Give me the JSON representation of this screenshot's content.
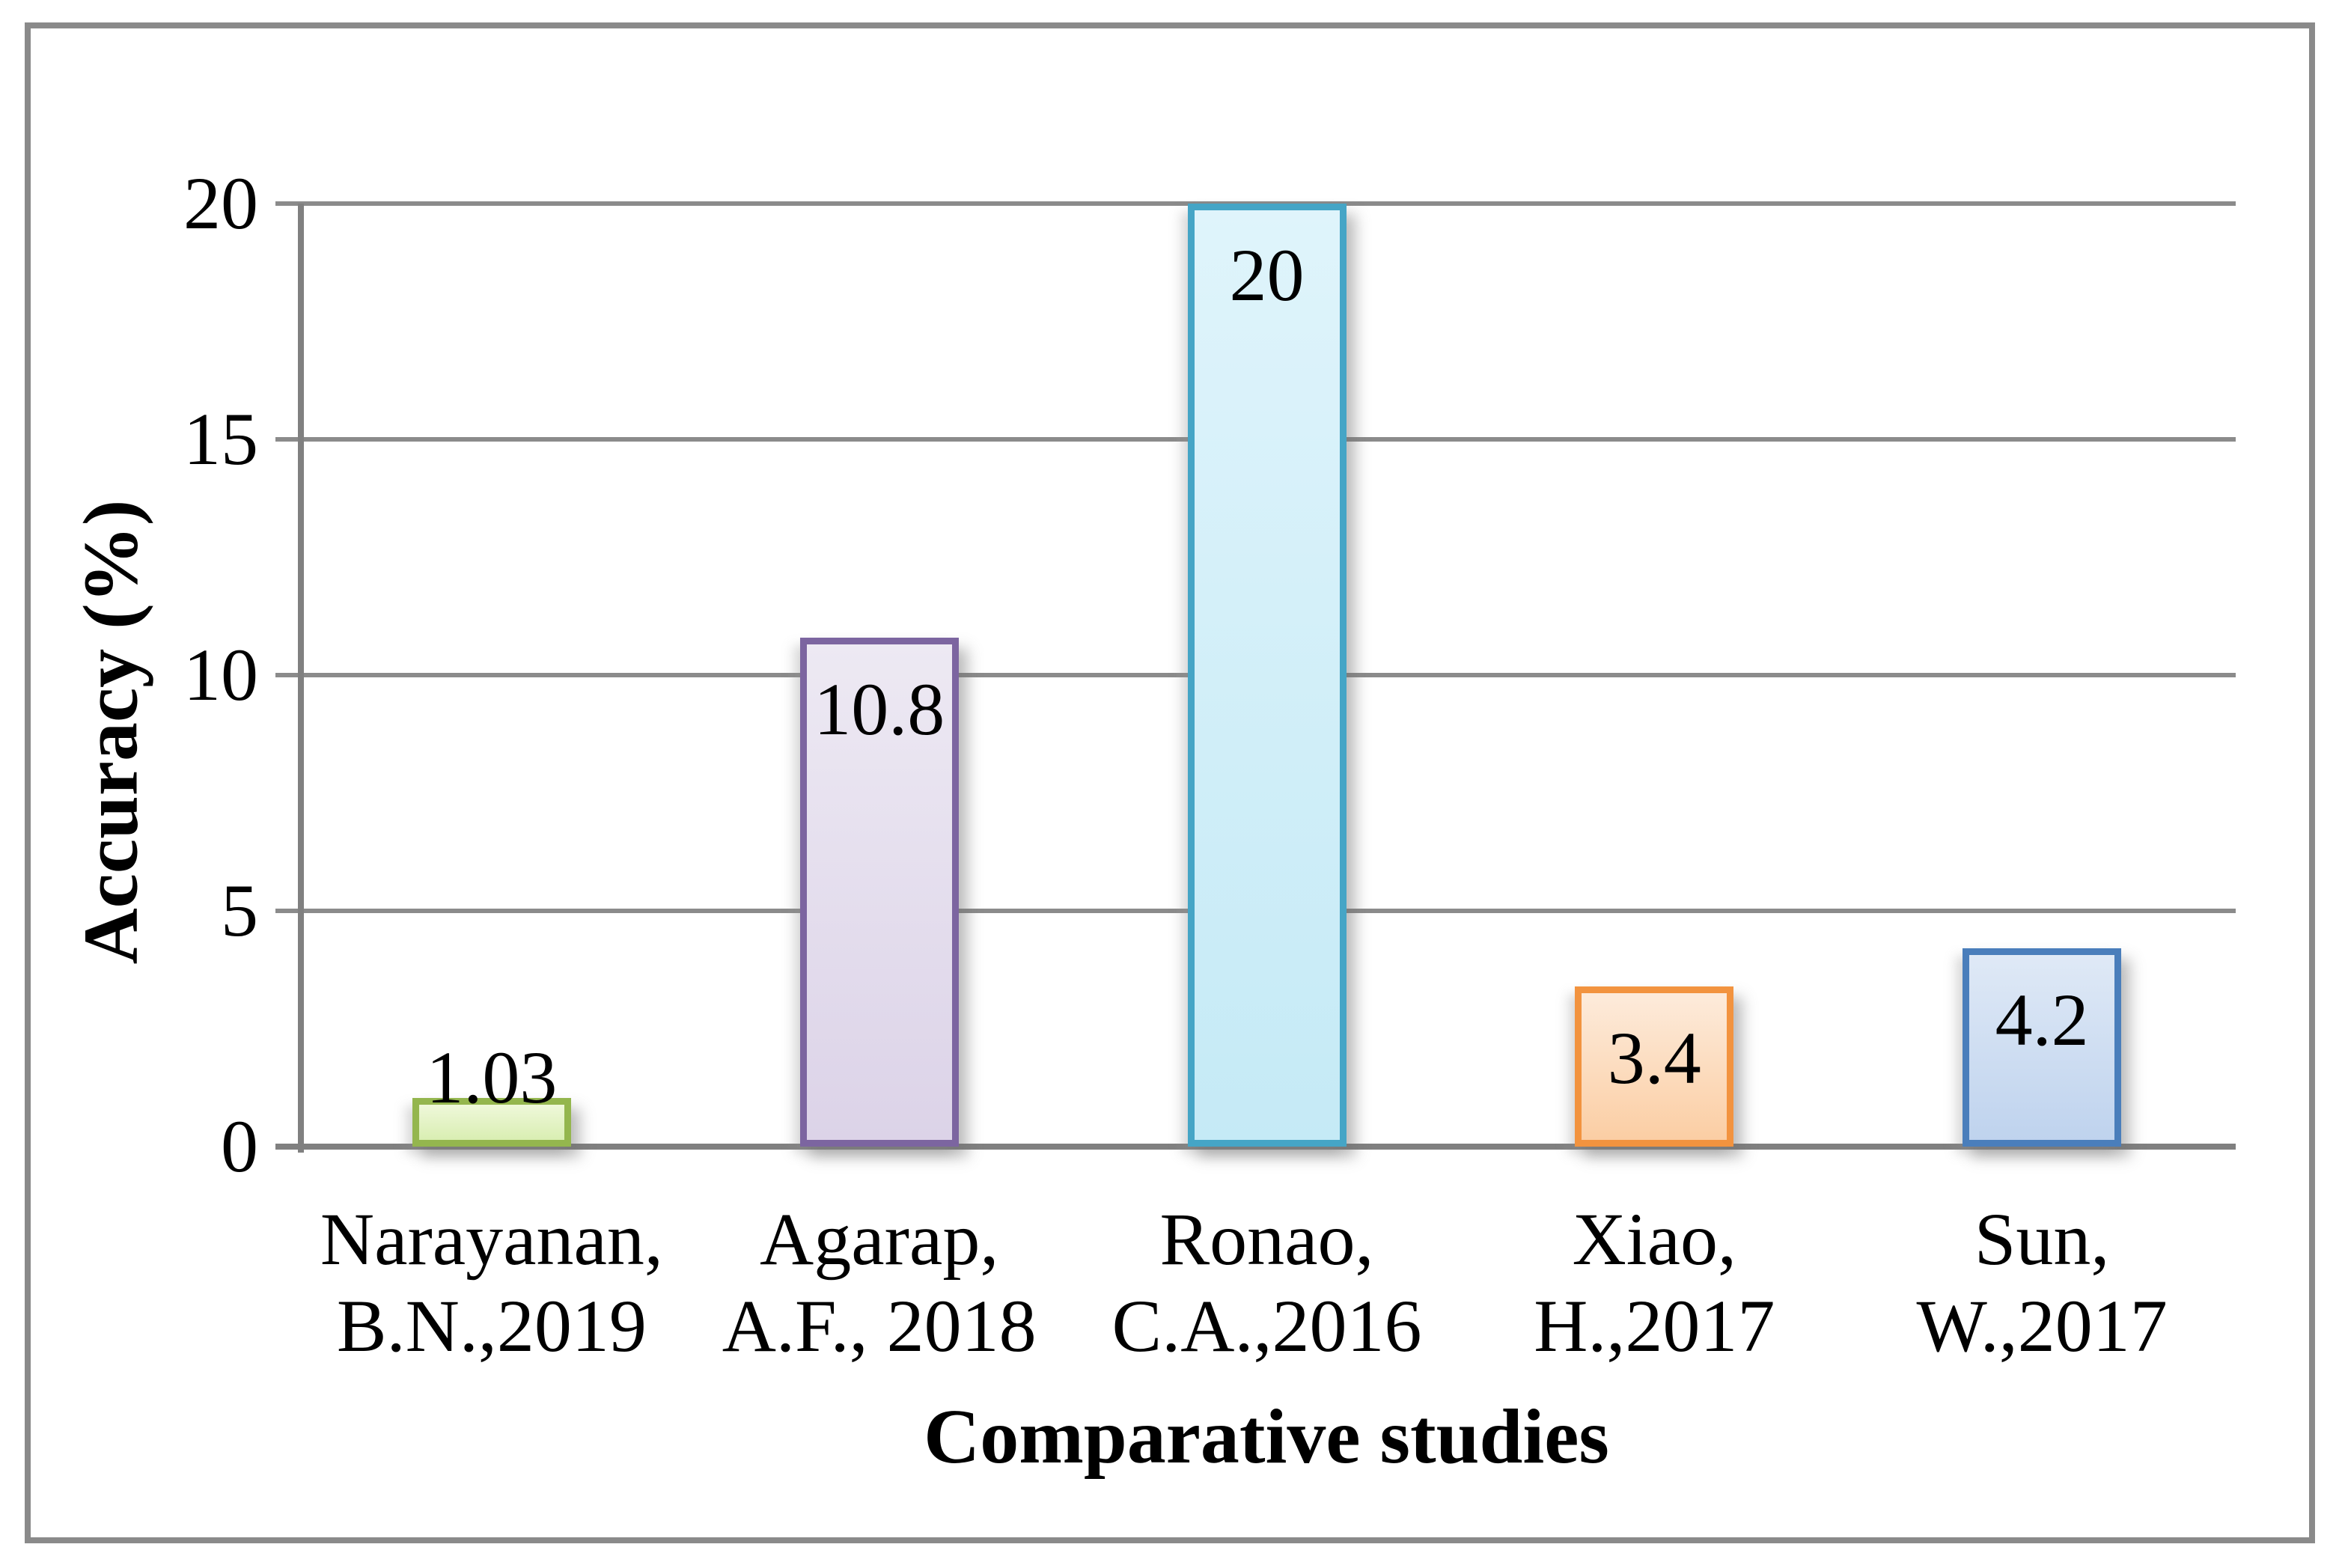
{
  "chart_data": {
    "type": "bar",
    "title": "",
    "xlabel": "Comparative studies",
    "ylabel": "Accuracy (%)",
    "categories": [
      "Narayanan, B.N.,2019",
      "Agarap, A.F., 2018",
      "Ronao, C.A.,2016",
      "Xiao, H.,2017",
      "Sun, W.,2017"
    ],
    "category_lines": [
      [
        "Narayanan,",
        "B.N.,2019"
      ],
      [
        "Agarap,",
        "A.F., 2018"
      ],
      [
        "Ronao,",
        "C.A.,2016"
      ],
      [
        "Xiao,",
        "H.,2017"
      ],
      [
        "Sun,",
        "W.,2017"
      ]
    ],
    "values": [
      1.03,
      10.8,
      20,
      3.4,
      4.2
    ],
    "data_labels": [
      "1.03",
      "10.8",
      "20",
      "3.4",
      "4.2"
    ],
    "ylim": [
      0,
      20
    ],
    "yticks": [
      0,
      5,
      10,
      15,
      20
    ],
    "grid": "horizontal",
    "legend": "none",
    "colors": {
      "gridline": "#8B8B8B",
      "axis_line": "#808080",
      "figure_border": "#8A8A8A",
      "text": "#000000",
      "bars": [
        {
          "name": "green",
          "border": "#94B64E",
          "fill_top": "#EFF8DA",
          "fill_bottom": "#D9EEB2"
        },
        {
          "name": "purple",
          "border": "#7C65A0",
          "fill_top": "#EDE9F3",
          "fill_bottom": "#DCD3E8"
        },
        {
          "name": "cyan",
          "border": "#45A5C6",
          "fill_top": "#DFF4FB",
          "fill_bottom": "#C5EAF6"
        },
        {
          "name": "orange",
          "border": "#F2933F",
          "fill_top": "#FDEBDB",
          "fill_bottom": "#FBCEA4"
        },
        {
          "name": "blue",
          "border": "#4A7EBB",
          "fill_top": "#DFE9F6",
          "fill_bottom": "#BFD3EE"
        }
      ]
    }
  }
}
